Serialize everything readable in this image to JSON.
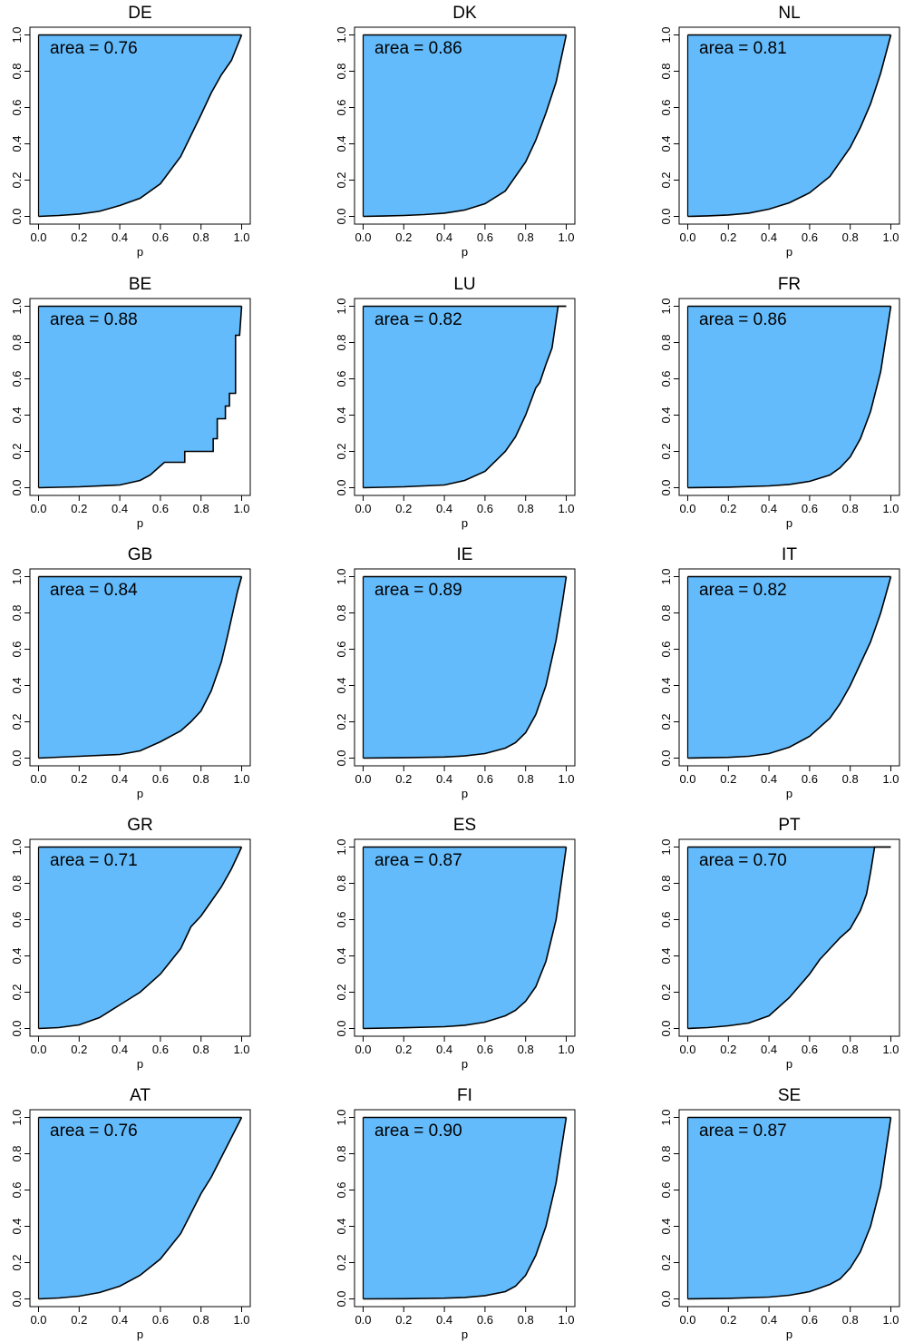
{
  "chart_data": [
    {
      "type": "area",
      "title": "DE",
      "annotation": "area = 0.76",
      "xlabel": "p",
      "ylabel": "",
      "xlim": [
        0,
        1
      ],
      "ylim": [
        0,
        1
      ],
      "x": [
        0,
        0.1,
        0.2,
        0.3,
        0.4,
        0.5,
        0.6,
        0.7,
        0.8,
        0.85,
        0.9,
        0.95,
        1.0
      ],
      "y": [
        0,
        0.005,
        0.013,
        0.028,
        0.06,
        0.1,
        0.18,
        0.33,
        0.56,
        0.68,
        0.78,
        0.86,
        1.0
      ]
    },
    {
      "type": "area",
      "title": "DK",
      "annotation": "area = 0.86",
      "xlabel": "p",
      "ylabel": "",
      "xlim": [
        0,
        1
      ],
      "ylim": [
        0,
        1
      ],
      "x": [
        0,
        0.1,
        0.2,
        0.3,
        0.4,
        0.5,
        0.6,
        0.7,
        0.8,
        0.85,
        0.9,
        0.95,
        1.0
      ],
      "y": [
        0,
        0.002,
        0.005,
        0.01,
        0.018,
        0.035,
        0.07,
        0.14,
        0.3,
        0.42,
        0.57,
        0.74,
        1.0
      ]
    },
    {
      "type": "area",
      "title": "NL",
      "annotation": "area = 0.81",
      "xlabel": "p",
      "ylabel": "",
      "xlim": [
        0,
        1
      ],
      "ylim": [
        0,
        1
      ],
      "x": [
        0,
        0.1,
        0.2,
        0.3,
        0.4,
        0.5,
        0.6,
        0.7,
        0.8,
        0.85,
        0.9,
        0.95,
        1.0
      ],
      "y": [
        0,
        0.003,
        0.008,
        0.018,
        0.04,
        0.075,
        0.13,
        0.22,
        0.38,
        0.49,
        0.62,
        0.79,
        1.0
      ]
    },
    {
      "type": "area",
      "title": "BE",
      "annotation": "area = 0.88",
      "xlabel": "p",
      "ylabel": "",
      "xlim": [
        0,
        1
      ],
      "ylim": [
        0,
        1
      ],
      "x": [
        0,
        0.2,
        0.4,
        0.5,
        0.55,
        0.6,
        0.62,
        0.72,
        0.72,
        0.86,
        0.86,
        0.88,
        0.88,
        0.92,
        0.92,
        0.94,
        0.94,
        0.97,
        0.97,
        0.99,
        1.0
      ],
      "y": [
        0,
        0.005,
        0.015,
        0.04,
        0.07,
        0.12,
        0.14,
        0.14,
        0.2,
        0.2,
        0.27,
        0.27,
        0.38,
        0.38,
        0.45,
        0.45,
        0.52,
        0.52,
        0.84,
        0.84,
        1.0
      ]
    },
    {
      "type": "area",
      "title": "LU",
      "annotation": "area = 0.82",
      "xlabel": "p",
      "ylabel": "",
      "xlim": [
        0,
        1
      ],
      "ylim": [
        0,
        1
      ],
      "x": [
        0,
        0.2,
        0.4,
        0.5,
        0.6,
        0.7,
        0.75,
        0.8,
        0.85,
        0.87,
        0.9,
        0.93,
        0.96,
        1.0
      ],
      "y": [
        0,
        0.005,
        0.015,
        0.04,
        0.09,
        0.2,
        0.28,
        0.4,
        0.55,
        0.58,
        0.68,
        0.77,
        1.0,
        1.0
      ]
    },
    {
      "type": "area",
      "title": "FR",
      "annotation": "area = 0.86",
      "xlabel": "p",
      "ylabel": "",
      "xlim": [
        0,
        1
      ],
      "ylim": [
        0,
        1
      ],
      "x": [
        0,
        0.2,
        0.4,
        0.5,
        0.6,
        0.7,
        0.75,
        0.8,
        0.85,
        0.9,
        0.95,
        1.0
      ],
      "y": [
        0,
        0.003,
        0.01,
        0.018,
        0.035,
        0.07,
        0.11,
        0.17,
        0.27,
        0.42,
        0.64,
        1.0
      ]
    },
    {
      "type": "area",
      "title": "GB",
      "annotation": "area = 0.84",
      "xlabel": "p",
      "ylabel": "",
      "xlim": [
        0,
        1
      ],
      "ylim": [
        0,
        1
      ],
      "x": [
        0,
        0.2,
        0.4,
        0.5,
        0.6,
        0.7,
        0.75,
        0.8,
        0.85,
        0.9,
        0.93,
        0.96,
        0.98,
        1.0
      ],
      "y": [
        0,
        0.01,
        0.02,
        0.04,
        0.09,
        0.15,
        0.2,
        0.26,
        0.37,
        0.53,
        0.67,
        0.82,
        0.92,
        1.0
      ]
    },
    {
      "type": "area",
      "title": "IE",
      "annotation": "area = 0.89",
      "xlabel": "p",
      "ylabel": "",
      "xlim": [
        0,
        1
      ],
      "ylim": [
        0,
        1
      ],
      "x": [
        0,
        0.2,
        0.4,
        0.5,
        0.6,
        0.7,
        0.75,
        0.8,
        0.85,
        0.9,
        0.95,
        0.98,
        1.0
      ],
      "y": [
        0,
        0.002,
        0.006,
        0.012,
        0.025,
        0.055,
        0.085,
        0.14,
        0.24,
        0.4,
        0.65,
        0.85,
        1.0
      ]
    },
    {
      "type": "area",
      "title": "IT",
      "annotation": "area = 0.82",
      "xlabel": "p",
      "ylabel": "",
      "xlim": [
        0,
        1
      ],
      "ylim": [
        0,
        1
      ],
      "x": [
        0,
        0.2,
        0.3,
        0.4,
        0.5,
        0.6,
        0.7,
        0.75,
        0.8,
        0.85,
        0.9,
        0.95,
        1.0
      ],
      "y": [
        0,
        0.004,
        0.01,
        0.025,
        0.06,
        0.12,
        0.22,
        0.3,
        0.4,
        0.52,
        0.64,
        0.8,
        1.0
      ]
    },
    {
      "type": "area",
      "title": "GR",
      "annotation": "area = 0.71",
      "xlabel": "p",
      "ylabel": "",
      "xlim": [
        0,
        1
      ],
      "ylim": [
        0,
        1
      ],
      "x": [
        0,
        0.1,
        0.2,
        0.3,
        0.4,
        0.5,
        0.6,
        0.65,
        0.7,
        0.75,
        0.8,
        0.85,
        0.9,
        0.95,
        1.0
      ],
      "y": [
        0,
        0.005,
        0.02,
        0.06,
        0.13,
        0.2,
        0.3,
        0.37,
        0.44,
        0.56,
        0.62,
        0.7,
        0.78,
        0.88,
        1.0
      ]
    },
    {
      "type": "area",
      "title": "ES",
      "annotation": "area = 0.87",
      "xlabel": "p",
      "ylabel": "",
      "xlim": [
        0,
        1
      ],
      "ylim": [
        0,
        1
      ],
      "x": [
        0,
        0.2,
        0.4,
        0.5,
        0.6,
        0.7,
        0.75,
        0.8,
        0.85,
        0.9,
        0.95,
        1.0
      ],
      "y": [
        0,
        0.004,
        0.01,
        0.018,
        0.035,
        0.07,
        0.1,
        0.15,
        0.23,
        0.37,
        0.6,
        1.0
      ]
    },
    {
      "type": "area",
      "title": "PT",
      "annotation": "area = 0.70",
      "xlabel": "p",
      "ylabel": "",
      "xlim": [
        0,
        1
      ],
      "ylim": [
        0,
        1
      ],
      "x": [
        0,
        0.1,
        0.2,
        0.3,
        0.4,
        0.5,
        0.6,
        0.65,
        0.7,
        0.75,
        0.8,
        0.85,
        0.88,
        0.9,
        0.92,
        1.0
      ],
      "y": [
        0,
        0.005,
        0.015,
        0.03,
        0.07,
        0.17,
        0.3,
        0.38,
        0.44,
        0.5,
        0.55,
        0.65,
        0.74,
        0.86,
        1.0,
        1.0
      ]
    },
    {
      "type": "area",
      "title": "AT",
      "annotation": "area = 0.76",
      "xlabel": "p",
      "ylabel": "",
      "xlim": [
        0,
        1
      ],
      "ylim": [
        0,
        1
      ],
      "x": [
        0,
        0.1,
        0.2,
        0.3,
        0.4,
        0.5,
        0.6,
        0.7,
        0.8,
        0.85,
        0.9,
        0.95,
        1.0
      ],
      "y": [
        0,
        0.005,
        0.015,
        0.035,
        0.07,
        0.13,
        0.22,
        0.36,
        0.58,
        0.67,
        0.78,
        0.89,
        1.0
      ]
    },
    {
      "type": "area",
      "title": "FI",
      "annotation": "area = 0.90",
      "xlabel": "p",
      "ylabel": "",
      "xlim": [
        0,
        1
      ],
      "ylim": [
        0,
        1
      ],
      "x": [
        0,
        0.2,
        0.4,
        0.5,
        0.6,
        0.7,
        0.75,
        0.8,
        0.85,
        0.9,
        0.95,
        1.0
      ],
      "y": [
        0,
        0.001,
        0.004,
        0.008,
        0.018,
        0.04,
        0.07,
        0.13,
        0.24,
        0.4,
        0.64,
        1.0
      ]
    },
    {
      "type": "area",
      "title": "SE",
      "annotation": "area = 0.87",
      "xlabel": "p",
      "ylabel": "",
      "xlim": [
        0,
        1
      ],
      "ylim": [
        0,
        1
      ],
      "x": [
        0,
        0.2,
        0.4,
        0.5,
        0.6,
        0.7,
        0.75,
        0.8,
        0.85,
        0.9,
        0.95,
        1.0
      ],
      "y": [
        0,
        0.003,
        0.01,
        0.02,
        0.04,
        0.08,
        0.11,
        0.17,
        0.26,
        0.4,
        0.62,
        1.0
      ]
    }
  ],
  "style": {
    "fill_color": "#63bbfb",
    "line_color": "#000000",
    "frame_color": "#000000"
  },
  "layout_desc": {
    "rows": 5,
    "cols": 3,
    "ticks": [
      "0.0",
      "0.2",
      "0.4",
      "0.6",
      "0.8",
      "1.0"
    ]
  }
}
